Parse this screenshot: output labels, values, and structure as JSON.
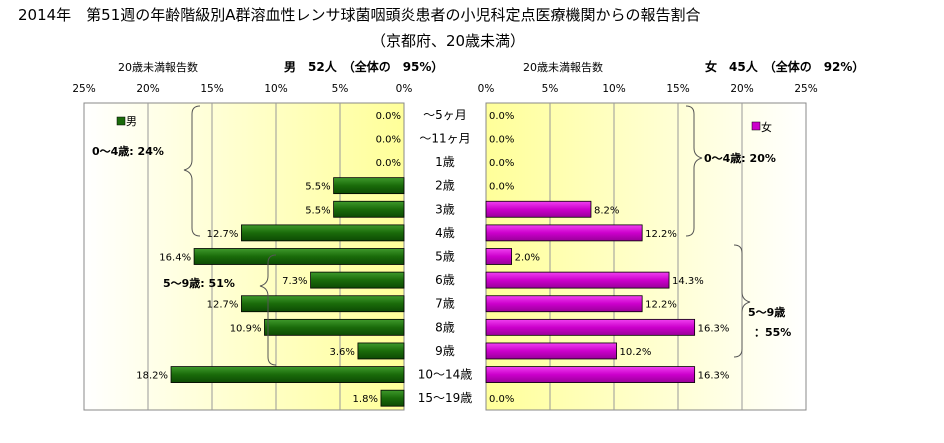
{
  "chart_data": {
    "type": "bar",
    "title": "2014年　第51週の年齢階級別A群溶血性レンサ球菌咽頭炎患者の小児科定点医療機関からの報告割合",
    "subtitle": "（京都府、20歳未満）",
    "categories": [
      "～5ヶ月",
      "～11ヶ月",
      "1歳",
      "2歳",
      "3歳",
      "4歳",
      "5歳",
      "6歳",
      "7歳",
      "8歳",
      "9歳",
      "10～14歳",
      "15～19歳"
    ],
    "ticks": [
      "0%",
      "5%",
      "10%",
      "15%",
      "20%",
      "25%"
    ],
    "xlim": [
      0,
      25
    ],
    "grid": true,
    "male": {
      "header_label": "20歳未満報告数",
      "summary": "男　52人　（全体の　95%）",
      "legend": "男",
      "color": "#1a6b0a",
      "data_labels": [
        "0.0%",
        "0.0%",
        "0.0%",
        "5.5%",
        "5.5%",
        "12.7%",
        "16.4%",
        "7.3%",
        "12.7%",
        "10.9%",
        "3.6%",
        "18.2%",
        "1.8%"
      ],
      "values": [
        0.0,
        0.0,
        0.0,
        5.5,
        5.5,
        12.7,
        16.4,
        7.3,
        12.7,
        10.9,
        3.6,
        18.2,
        1.8
      ],
      "group_labels": [
        "0～4歳: 24%",
        "5～9歳: 51%"
      ]
    },
    "female": {
      "header_label": "20歳未満報告数",
      "summary": "女　45人　（全体の　92%）",
      "legend": "女",
      "color": "#cc00cc",
      "data_labels": [
        "0.0%",
        "0.0%",
        "0.0%",
        "0.0%",
        "8.2%",
        "12.2%",
        "2.0%",
        "14.3%",
        "12.2%",
        "16.3%",
        "10.2%",
        "16.3%",
        "0.0%"
      ],
      "values": [
        0.0,
        0.0,
        0.0,
        0.0,
        8.2,
        12.2,
        2.0,
        14.3,
        12.2,
        16.3,
        10.2,
        16.3,
        0.0
      ],
      "group_labels": [
        "0～4歳: 20%",
        "5～9歳",
        "：55%"
      ]
    }
  }
}
